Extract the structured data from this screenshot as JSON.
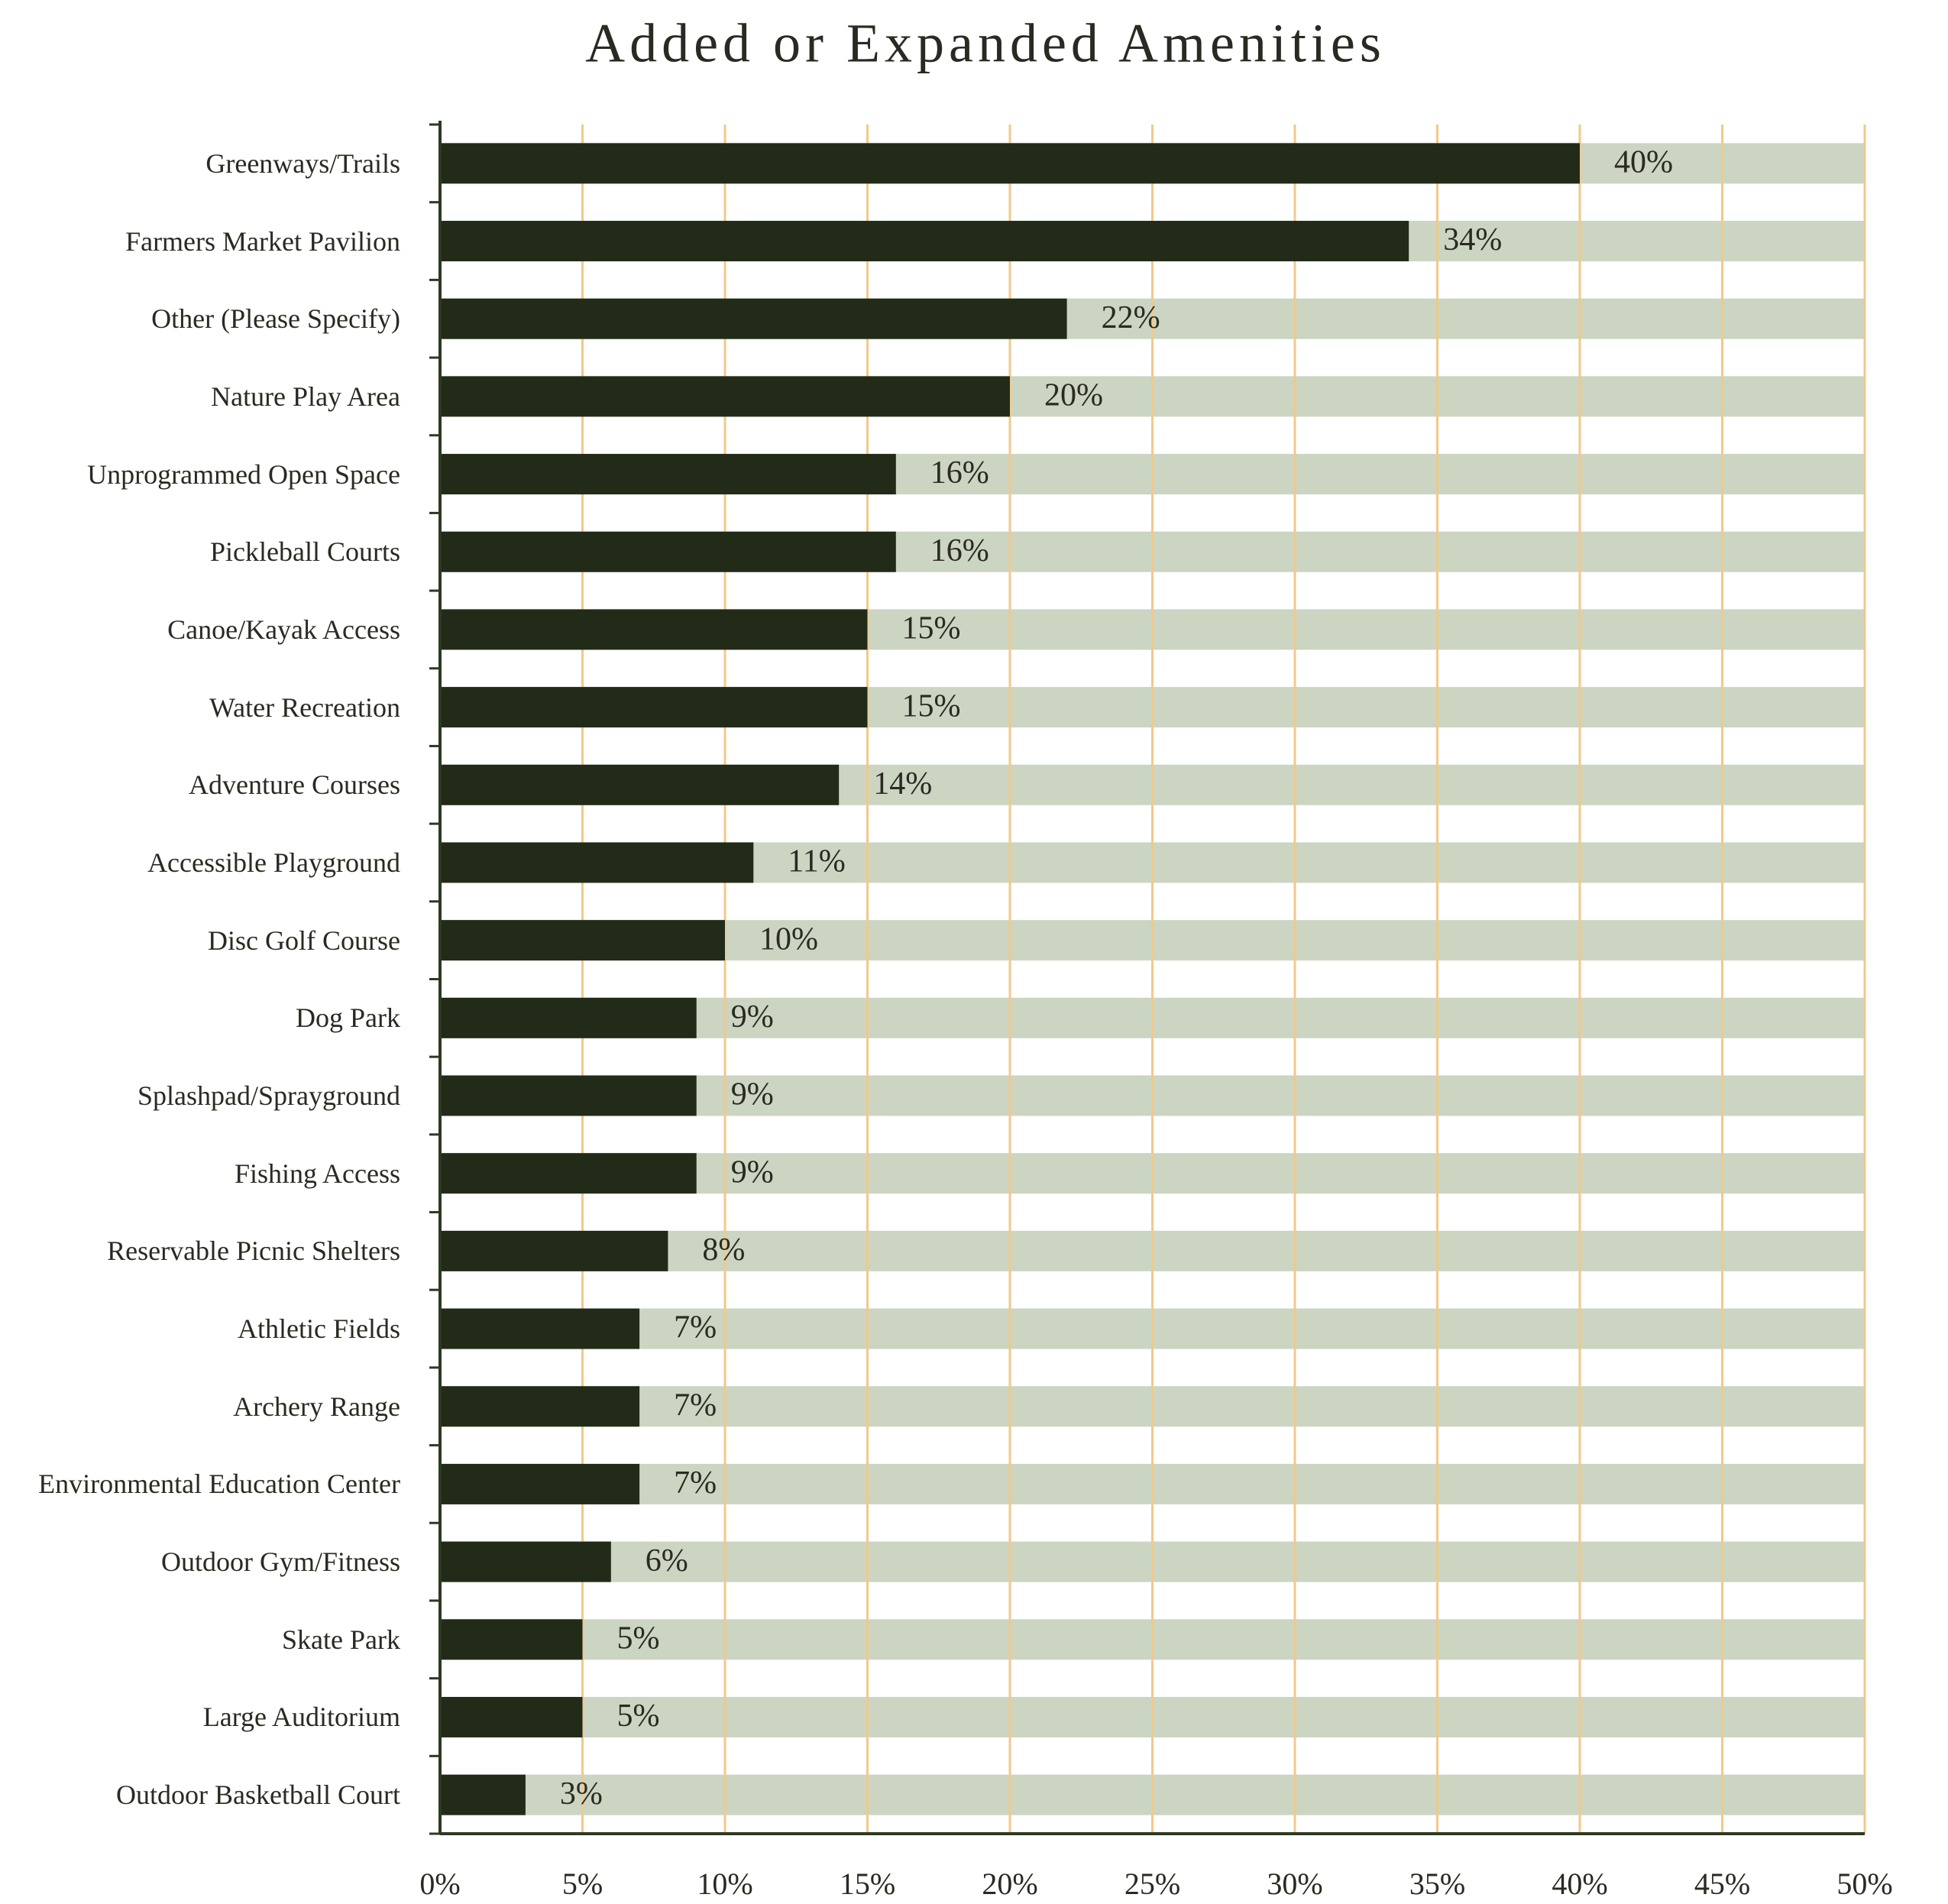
{
  "chart_data": {
    "type": "bar",
    "orientation": "horizontal",
    "title": "Added or Expanded Amenities",
    "categories": [
      "Greenways/Trails",
      "Farmers Market Pavilion",
      "Other (Please Specify)",
      "Nature Play Area",
      "Unprogrammed Open Space",
      "Pickleball Courts",
      "Canoe/Kayak Access",
      "Water Recreation",
      "Adventure Courses",
      "Accessible Playground",
      "Disc Golf Course",
      "Dog Park",
      "Splashpad/Sprayground",
      "Fishing Access",
      "Reservable Picnic Shelters",
      "Athletic Fields",
      "Archery Range",
      "Environmental Education Center",
      "Outdoor Gym/Fitness",
      "Skate Park",
      "Large Auditorium",
      "Outdoor Basketball Court"
    ],
    "values": [
      40,
      34,
      22,
      20,
      16,
      16,
      15,
      15,
      14,
      11,
      10,
      9,
      9,
      9,
      8,
      7,
      7,
      7,
      6,
      5,
      5,
      3
    ],
    "value_labels": [
      "40%",
      "34%",
      "22%",
      "20%",
      "16%",
      "16%",
      "15%",
      "15%",
      "14%",
      "11%",
      "10%",
      "9%",
      "9%",
      "9%",
      "8%",
      "7%",
      "7%",
      "7%",
      "6%",
      "5%",
      "5%",
      "3%"
    ],
    "color": "#222b18",
    "track_color": "#cbd5c2",
    "grid_color": "#f2c98a",
    "grid": true,
    "xlim": [
      0,
      50
    ],
    "xticks": [
      {
        "value": 0,
        "label": "0%"
      },
      {
        "value": 5,
        "label": "5%"
      },
      {
        "value": 10,
        "label": "10%"
      },
      {
        "value": 15,
        "label": "15%"
      },
      {
        "value": 20,
        "label": "20%"
      },
      {
        "value": 25,
        "label": "25%"
      },
      {
        "value": 30,
        "label": "30%"
      },
      {
        "value": 35,
        "label": "35%"
      },
      {
        "value": 40,
        "label": "40%"
      },
      {
        "value": 45,
        "label": "45%"
      },
      {
        "value": 50,
        "label": "50%"
      }
    ]
  }
}
